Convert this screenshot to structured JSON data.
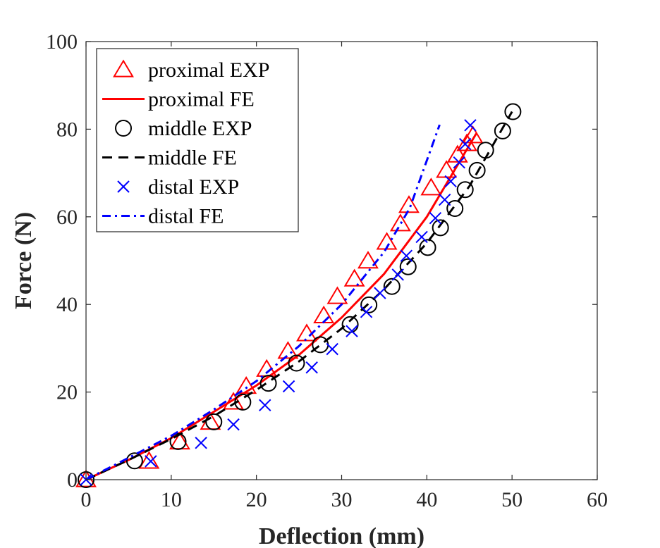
{
  "chart_data": {
    "type": "scatter",
    "title": "",
    "xlabel": "Deflection (mm)",
    "ylabel": "Force (N)",
    "xlim": [
      0,
      60
    ],
    "ylim": [
      0,
      100
    ],
    "xticks": [
      "0",
      "10",
      "20",
      "30",
      "40",
      "50",
      "60"
    ],
    "yticks": [
      "0",
      "20",
      "40",
      "60",
      "80",
      "100"
    ],
    "legend_position": "top-left",
    "series": [
      {
        "name": "proximal EXP",
        "kind": "marker",
        "marker": "triangle",
        "color": "#ff0000",
        "x": [
          0,
          7.4,
          11.0,
          14.6,
          17.3,
          18.8,
          21.2,
          23.7,
          25.9,
          27.9,
          29.5,
          31.5,
          33.1,
          35.3,
          36.9,
          37.9,
          40.5,
          42.3,
          43.6,
          44.7,
          45.4
        ],
        "y": [
          0,
          4.2,
          8.6,
          13.1,
          17.7,
          21.3,
          25.2,
          29.3,
          33.3,
          37.4,
          41.8,
          45.8,
          49.9,
          54.2,
          58.4,
          62.6,
          66.6,
          70.6,
          74.1,
          76.7,
          78.5
        ]
      },
      {
        "name": "proximal FE",
        "kind": "line",
        "dash": "solid",
        "color": "#ff0000",
        "x": [
          0,
          5,
          10,
          15,
          20,
          25,
          30,
          35,
          40,
          45.8
        ],
        "y": [
          0,
          4.5,
          9.5,
          15.5,
          21.5,
          28.5,
          37.0,
          47.0,
          60.0,
          79.0
        ]
      },
      {
        "name": "middle EXP",
        "kind": "marker",
        "marker": "circle",
        "color": "#000000",
        "x": [
          0,
          5.7,
          10.8,
          15.0,
          18.4,
          21.4,
          24.7,
          27.5,
          31.0,
          33.2,
          35.9,
          37.8,
          40.1,
          41.6,
          43.3,
          44.5,
          45.9,
          46.9,
          48.9,
          50.1
        ],
        "y": [
          0,
          4.3,
          8.7,
          13.2,
          17.7,
          22.0,
          26.6,
          30.8,
          35.4,
          39.9,
          44.1,
          48.6,
          53.0,
          57.5,
          61.9,
          66.2,
          70.6,
          75.2,
          79.6,
          84.0
        ]
      },
      {
        "name": "middle FE",
        "kind": "line",
        "dash": "dashed",
        "color": "#000000",
        "x": [
          0,
          5,
          10,
          15,
          20,
          25,
          30,
          35,
          40,
          45,
          50
        ],
        "y": [
          0,
          4.5,
          9.3,
          14.5,
          20.5,
          27.0,
          34.5,
          43.5,
          54.0,
          67.0,
          84.0
        ]
      },
      {
        "name": "distal EXP",
        "kind": "marker",
        "marker": "x",
        "color": "#0000ff",
        "x": [
          0,
          7.6,
          13.5,
          17.3,
          21.0,
          23.8,
          26.5,
          28.9,
          31.2,
          32.9,
          34.5,
          36.6,
          37.6,
          39.4,
          41.0,
          42.1,
          42.8,
          43.8,
          44.5,
          45.1
        ],
        "y": [
          0,
          4.2,
          8.4,
          12.6,
          17.0,
          21.3,
          25.6,
          29.8,
          33.9,
          38.3,
          42.6,
          46.8,
          51.1,
          55.4,
          59.7,
          63.9,
          68.1,
          72.4,
          76.6,
          80.9
        ]
      },
      {
        "name": "distal FE",
        "kind": "line",
        "dash": "dashdot",
        "color": "#0000ff",
        "x": [
          0,
          5,
          10,
          15,
          20,
          25,
          30,
          35,
          38,
          41.5
        ],
        "y": [
          0,
          5.0,
          10.0,
          16.0,
          22.5,
          30.5,
          40.0,
          52.0,
          62.0,
          81.0
        ]
      }
    ]
  }
}
